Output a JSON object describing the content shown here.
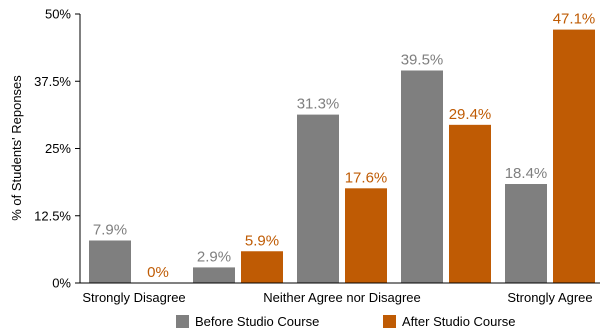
{
  "chart_data": {
    "type": "bar",
    "ylabel": "% of Students' Reponses",
    "ylim": [
      0,
      50
    ],
    "yticks": [
      0,
      12.5,
      25,
      37.5,
      50
    ],
    "ytick_labels": [
      "0%",
      "12.5%",
      "25%",
      "37.5%",
      "50%"
    ],
    "categories": [
      "Strongly Disagree",
      "",
      "Neither Agree nor Disagree",
      "",
      "Strongly Agree"
    ],
    "series": [
      {
        "name": "Before Studio Course",
        "color": "#7f7f7f",
        "values": [
          7.9,
          2.9,
          31.3,
          39.5,
          18.4
        ],
        "labels": [
          "7.9%",
          "2.9%",
          "31.3%",
          "39.5%",
          "18.4%"
        ]
      },
      {
        "name": "After Studio Course",
        "color": "#bf5b04",
        "values": [
          0,
          5.9,
          17.6,
          29.4,
          47.1
        ],
        "labels": [
          "0%",
          "5.9%",
          "17.6%",
          "29.4%",
          "47.1%"
        ]
      }
    ],
    "grid": false,
    "legend": "bottom"
  }
}
